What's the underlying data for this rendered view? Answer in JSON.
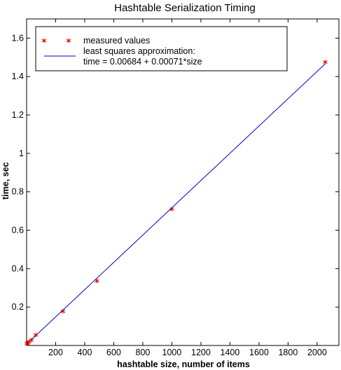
{
  "chart_data": {
    "type": "scatter",
    "title": "Hashtable Serialization Timing",
    "xlabel": "hashtable size, number of items",
    "ylabel": "time, sec",
    "xlim": [
      0,
      2150
    ],
    "ylim": [
      0,
      1.7
    ],
    "x_ticks": [
      200,
      400,
      600,
      800,
      1000,
      1200,
      1400,
      1600,
      1800,
      2000
    ],
    "x_tick_labels": [
      "200",
      "400",
      "600",
      "800",
      "1000",
      "1200",
      "1400",
      "1600",
      "1800",
      "2000"
    ],
    "y_ticks": [
      0.2,
      0.4,
      0.6,
      0.8,
      1.0,
      1.2,
      1.4,
      1.6
    ],
    "y_tick_labels": [
      "0.2",
      "0.4",
      "0.6",
      "0.8",
      "1",
      "1.2",
      "1.4",
      "1.6"
    ],
    "grid": false,
    "legend_position": "top-left",
    "series": [
      {
        "name": "measured values",
        "kind": "scatter",
        "marker": "*",
        "color": "#e00000",
        "points": [
          {
            "x": 2,
            "y": 0.009
          },
          {
            "x": 8,
            "y": 0.013
          },
          {
            "x": 16,
            "y": 0.019
          },
          {
            "x": 32,
            "y": 0.028
          },
          {
            "x": 64,
            "y": 0.055
          },
          {
            "x": 250,
            "y": 0.178
          },
          {
            "x": 484,
            "y": 0.336
          },
          {
            "x": 1000,
            "y": 0.71
          },
          {
            "x": 2056,
            "y": 1.475
          }
        ]
      },
      {
        "name": "least squares approximation:",
        "kind": "line",
        "color": "#0000cc",
        "intercept": 0.00684,
        "slope": 0.00071,
        "x_range": [
          0,
          2056
        ]
      }
    ],
    "legend_entries": [
      "measured values",
      "least squares approximation:",
      "time = 0.00684 + 0.00071*size"
    ]
  }
}
